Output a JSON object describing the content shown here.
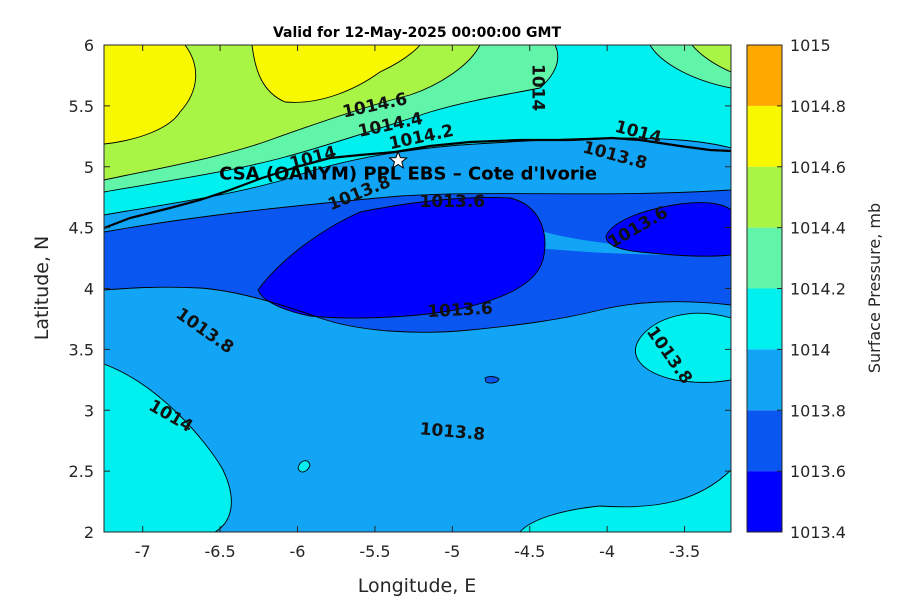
{
  "chart_data": {
    "type": "heatmap",
    "title": "Valid for 12-May-2025 00:00:00 GMT",
    "xlabel": "Longitude, E",
    "ylabel": "Latitude, N",
    "xlim": [
      -7.25,
      -3.2
    ],
    "ylim": [
      2,
      6
    ],
    "xticks": [
      "-7",
      "-6.5",
      "-6",
      "-5.5",
      "-5",
      "-4.5",
      "-4",
      "-3.5"
    ],
    "yticks": [
      "2",
      "2.5",
      "3",
      "3.5",
      "4",
      "4.5",
      "5",
      "5.5",
      "6"
    ],
    "grid": false,
    "colorbar": {
      "label": "Surface Pressure, mb",
      "levels": [
        1013.4,
        1013.6,
        1013.8,
        1014,
        1014.2,
        1014.4,
        1014.6,
        1014.8,
        1015
      ],
      "tick_labels": [
        "1013.4",
        "1013.6",
        "1013.8",
        "1014",
        "1014.2",
        "1014.4",
        "1014.6",
        "1014.8",
        "1015"
      ],
      "colors": [
        "#0000ff",
        "#0a56f0",
        "#12a5f5",
        "#00f0f0",
        "#60f5a8",
        "#a8f545",
        "#f8f800",
        "#ffa800",
        "#ff5500"
      ]
    },
    "contour_labels": [
      {
        "text": "1014.6",
        "lon": -5.5,
        "lat": 5.5
      },
      {
        "text": "1014.4",
        "lon": -5.4,
        "lat": 5.34
      },
      {
        "text": "1014.2",
        "lon": -5.2,
        "lat": 5.24
      },
      {
        "text": "1014",
        "lon": -4.45,
        "lat": 5.65
      },
      {
        "text": "1014",
        "lon": -3.8,
        "lat": 5.28
      },
      {
        "text": "1013.8",
        "lon": -3.95,
        "lat": 5.09
      },
      {
        "text": "1014",
        "lon": -5.9,
        "lat": 5.07
      },
      {
        "text": "1013.8",
        "lon": -5.6,
        "lat": 4.78
      },
      {
        "text": "1013.6",
        "lon": -5.0,
        "lat": 4.71
      },
      {
        "text": "1013.6",
        "lon": -3.8,
        "lat": 4.5
      },
      {
        "text": "1013.6",
        "lon": -4.95,
        "lat": 3.82
      },
      {
        "text": "1013.8",
        "lon": -6.6,
        "lat": 3.65
      },
      {
        "text": "1013.8",
        "lon": -3.6,
        "lat": 3.45
      },
      {
        "text": "1014",
        "lon": -6.82,
        "lat": 2.95
      },
      {
        "text": "1013.8",
        "lon": -5.0,
        "lat": 2.82
      }
    ],
    "annotations": [
      {
        "text": "CSA (OANYM) PPL EBS  – Cote d'Ivorie",
        "marker": "star",
        "lon": -5.35,
        "lat": 5.05
      }
    ]
  }
}
